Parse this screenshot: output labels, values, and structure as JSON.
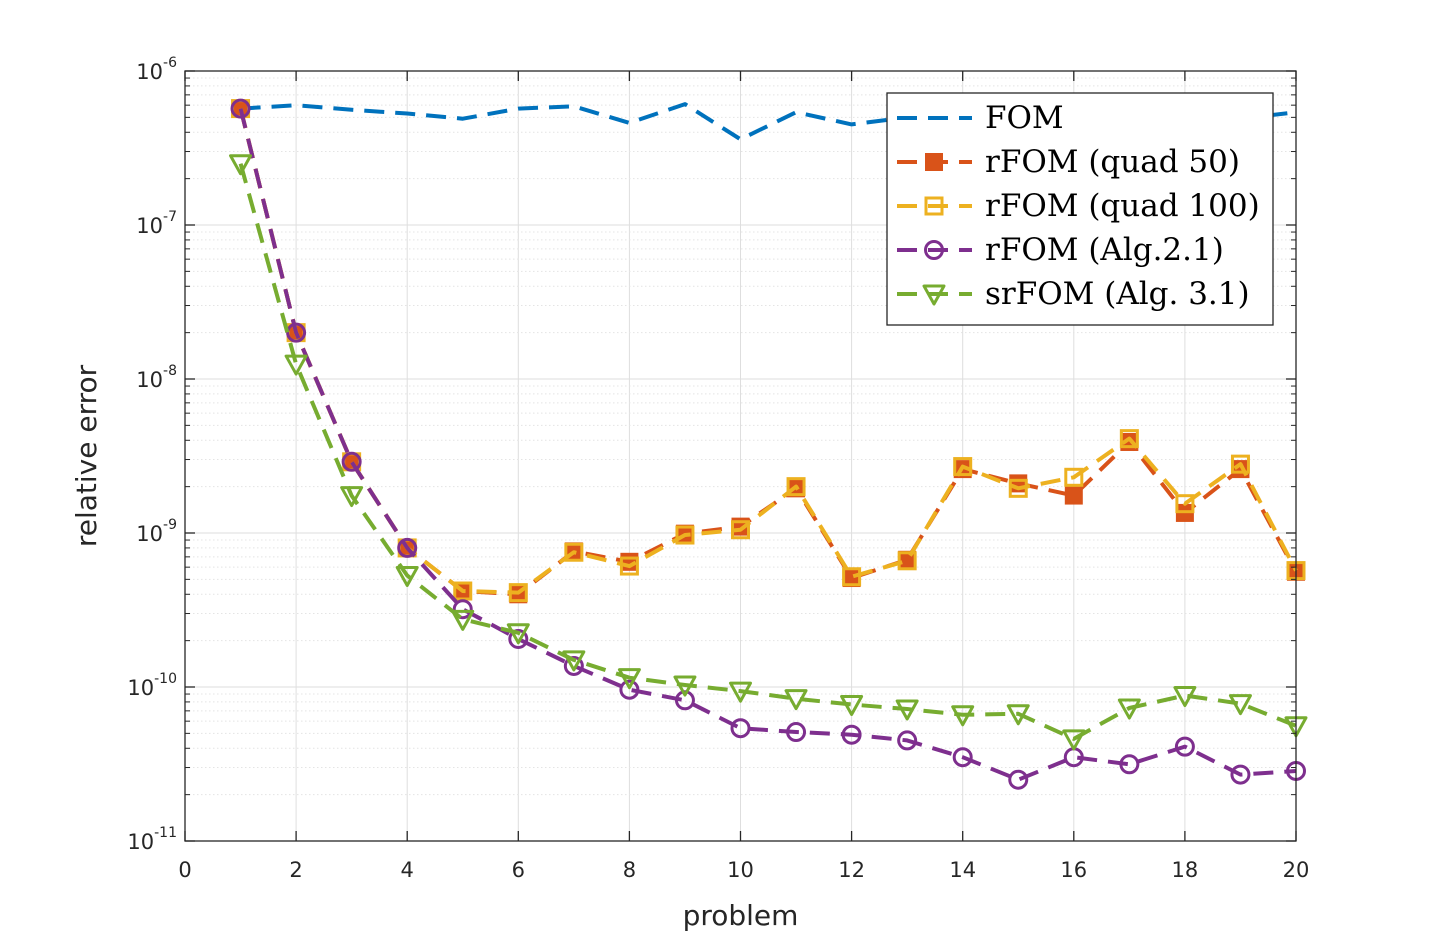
{
  "chart_data": {
    "type": "line",
    "title": "",
    "xlabel": "problem",
    "ylabel": "relative error",
    "xlim": [
      0,
      20
    ],
    "ylim": [
      1e-11,
      1e-06
    ],
    "yscale": "log",
    "grid": true,
    "minor_grid": true,
    "legend_position": "top-right",
    "x_ticks": [
      "0",
      "2",
      "4",
      "6",
      "8",
      "10",
      "12",
      "14",
      "16",
      "18",
      "20"
    ],
    "y_ticks": [
      {
        "base": "10",
        "exp": "-11",
        "value": 1e-11
      },
      {
        "base": "10",
        "exp": "-10",
        "value": 1e-10
      },
      {
        "base": "10",
        "exp": "-9",
        "value": 1e-09
      },
      {
        "base": "10",
        "exp": "-8",
        "value": 1e-08
      },
      {
        "base": "10",
        "exp": "-7",
        "value": 1e-07
      },
      {
        "base": "10",
        "exp": "-6",
        "value": 1e-06
      }
    ],
    "x": [
      1,
      2,
      3,
      4,
      5,
      6,
      7,
      8,
      9,
      10,
      11,
      12,
      13,
      14,
      15,
      16,
      17,
      18,
      19,
      20
    ],
    "series": [
      {
        "name": "FOM",
        "color": "#0072BD",
        "marker": "none",
        "values": [
          5.7e-07,
          6e-07,
          5.6e-07,
          5.3e-07,
          4.9e-07,
          5.7e-07,
          5.9e-07,
          4.6e-07,
          6.1e-07,
          3.6e-07,
          5.4e-07,
          4.5e-07,
          5e-07,
          5.3e-07,
          5.6e-07,
          5e-07,
          5.4e-07,
          5.5e-07,
          4.9e-07,
          5.4e-07
        ]
      },
      {
        "name": "rFOM (quad 50)",
        "color": "#D95319",
        "marker": "square-filled",
        "values": [
          5.7e-07,
          2e-08,
          2.9e-09,
          8e-10,
          4.2e-10,
          4e-10,
          7.6e-10,
          6.5e-10,
          9.9e-10,
          1.1e-09,
          1.95e-09,
          5.1e-10,
          6.7e-10,
          2.6e-09,
          2.1e-09,
          1.75e-09,
          3.9e-09,
          1.35e-09,
          2.6e-09,
          5.6e-10
        ]
      },
      {
        "name": "rFOM (quad 100)",
        "color": "#EDB120",
        "marker": "square-open",
        "values": [
          5.7e-07,
          2e-08,
          2.9e-09,
          8e-10,
          4.2e-10,
          4.1e-10,
          7.5e-10,
          6.1e-10,
          9.7e-10,
          1.05e-09,
          2e-09,
          5.2e-10,
          6.6e-10,
          2.7e-09,
          1.95e-09,
          2.3e-09,
          4.1e-09,
          1.55e-09,
          2.8e-09,
          5.7e-10
        ]
      },
      {
        "name": "rFOM (Alg.2.1)",
        "color": "#7E2F8E",
        "marker": "circle",
        "values": [
          5.7e-07,
          2e-08,
          2.9e-09,
          8e-10,
          3.2e-10,
          2.05e-10,
          1.37e-10,
          9.6e-11,
          8.2e-11,
          5.4e-11,
          5.1e-11,
          4.9e-11,
          4.5e-11,
          3.5e-11,
          2.5e-11,
          3.5e-11,
          3.15e-11,
          4.1e-11,
          2.7e-11,
          2.85e-11
        ]
      },
      {
        "name": "srFOM (Alg. 3.1)",
        "color": "#77AC30",
        "marker": "triangle-down",
        "values": [
          2.5e-07,
          1.25e-08,
          1.75e-09,
          5.3e-10,
          2.75e-10,
          2.25e-10,
          1.5e-10,
          1.15e-10,
          1.03e-10,
          9.4e-11,
          8.4e-11,
          7.7e-11,
          7.2e-11,
          6.6e-11,
          6.7e-11,
          4.6e-11,
          7.3e-11,
          8.8e-11,
          7.8e-11,
          5.6e-11
        ]
      }
    ]
  }
}
